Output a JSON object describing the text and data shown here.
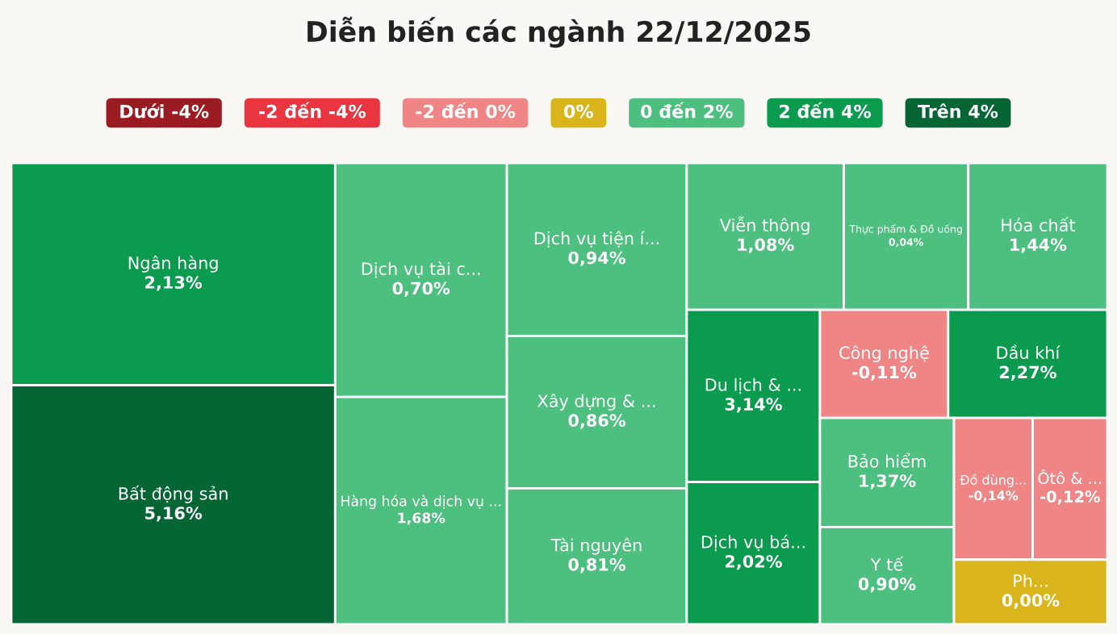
{
  "chart_data": [
    {
      "type": "other",
      "title": "Diễn biến các ngành 22/12/2025",
      "categories": [
        "Dưới -4%",
        "-2 đến -4%",
        "-2 đến 0%",
        "0%",
        "0 đến 2%",
        "2 đến 4%",
        "Trên 4%"
      ],
      "colors": [
        "#9b1b22",
        "#e8353f",
        "#f08585",
        "#d9b41a",
        "#4dbf7f",
        "#0a9b4f",
        "#066535"
      ]
    },
    {
      "type": "other",
      "categories": [
        "Ngân hàng",
        "Bất động sản",
        "Dịch vụ tài c...",
        "Hàng hóa và dịch vụ ...",
        "Dịch vụ tiện í...",
        "Xây dựng & ...",
        "Tài nguyên",
        "Viễn thông",
        "Thực phẩm & Đồ uống",
        "Hóa chất",
        "Du lịch & ...",
        "Dịch vụ bá...",
        "Công nghệ",
        "Dầu khí",
        "Bảo hiểm",
        "Y tế",
        "Đồ dùng...",
        "Ôtô & ...",
        "Ph..."
      ],
      "values": [
        2.13,
        5.16,
        0.7,
        1.68,
        0.94,
        0.86,
        0.81,
        1.08,
        0.04,
        1.44,
        3.14,
        2.02,
        -0.11,
        2.27,
        1.37,
        0.9,
        -0.14,
        -0.12,
        0.0
      ],
      "value_labels": [
        "2,13%",
        "5,16%",
        "0,70%",
        "1,68%",
        "0,94%",
        "0,86%",
        "0,81%",
        "1,08%",
        "0,04%",
        "1,44%",
        "3,14%",
        "2,02%",
        "-0,11%",
        "2,27%",
        "1,37%",
        "0,90%",
        "-0,14%",
        "-0,12%",
        "0,00%"
      ],
      "colors": [
        "#0a9b4f",
        "#066535",
        "#4dbf7f",
        "#4dbf7f",
        "#4dbf7f",
        "#4dbf7f",
        "#4dbf7f",
        "#4dbf7f",
        "#4dbf7f",
        "#4dbf7f",
        "#0a9b4f",
        "#0a9b4f",
        "#f08585",
        "#0a9b4f",
        "#4dbf7f",
        "#4dbf7f",
        "#f08585",
        "#f08585",
        "#d9b41a"
      ]
    }
  ]
}
